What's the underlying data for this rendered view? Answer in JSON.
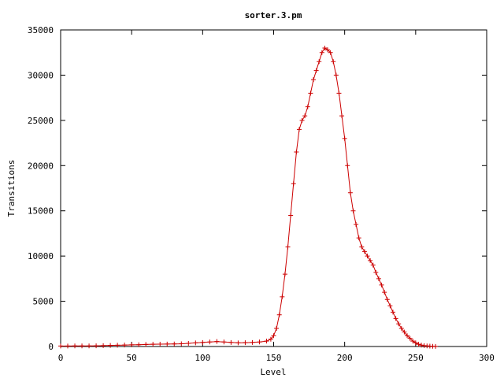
{
  "chart_data": {
    "type": "line",
    "title": "sorter.3.pm",
    "xlabel": "Level",
    "ylabel": "Transitions",
    "xlim": [
      0,
      300
    ],
    "ylim": [
      0,
      35000
    ],
    "xticks": [
      0,
      50,
      100,
      150,
      200,
      250,
      300
    ],
    "yticks": [
      0,
      5000,
      10000,
      15000,
      20000,
      25000,
      30000,
      35000
    ],
    "grid": false,
    "legend": "none",
    "series": [
      {
        "color": "#cc0000",
        "marker": "plus",
        "x": [
          0,
          5,
          10,
          15,
          20,
          25,
          30,
          35,
          40,
          45,
          50,
          55,
          60,
          65,
          70,
          75,
          80,
          85,
          90,
          95,
          100,
          105,
          110,
          115,
          120,
          125,
          130,
          135,
          140,
          145,
          148,
          150,
          152,
          154,
          156,
          158,
          160,
          162,
          164,
          166,
          168,
          170,
          172,
          174,
          176,
          178,
          180,
          182,
          184,
          186,
          188,
          190,
          192,
          194,
          196,
          198,
          200,
          202,
          204,
          206,
          208,
          210,
          212,
          214,
          216,
          218,
          220,
          222,
          224,
          226,
          228,
          230,
          232,
          234,
          236,
          238,
          240,
          242,
          244,
          246,
          248,
          250,
          252,
          254,
          256,
          258,
          260,
          262,
          264
        ],
        "y": [
          50,
          50,
          60,
          60,
          70,
          80,
          100,
          120,
          140,
          160,
          180,
          200,
          230,
          250,
          260,
          270,
          280,
          300,
          350,
          400,
          450,
          500,
          550,
          500,
          450,
          400,
          420,
          450,
          500,
          600,
          800,
          1200,
          2000,
          3500,
          5500,
          8000,
          11000,
          14500,
          18000,
          21500,
          24000,
          25000,
          25500,
          26500,
          28000,
          29500,
          30500,
          31500,
          32500,
          33000,
          32800,
          32500,
          31500,
          30000,
          28000,
          25500,
          23000,
          20000,
          17000,
          15000,
          13500,
          12000,
          11000,
          10500,
          10000,
          9500,
          9000,
          8200,
          7500,
          6800,
          6000,
          5200,
          4500,
          3800,
          3100,
          2500,
          2000,
          1600,
          1200,
          900,
          600,
          400,
          250,
          150,
          100,
          60,
          40,
          20,
          10
        ]
      }
    ]
  }
}
